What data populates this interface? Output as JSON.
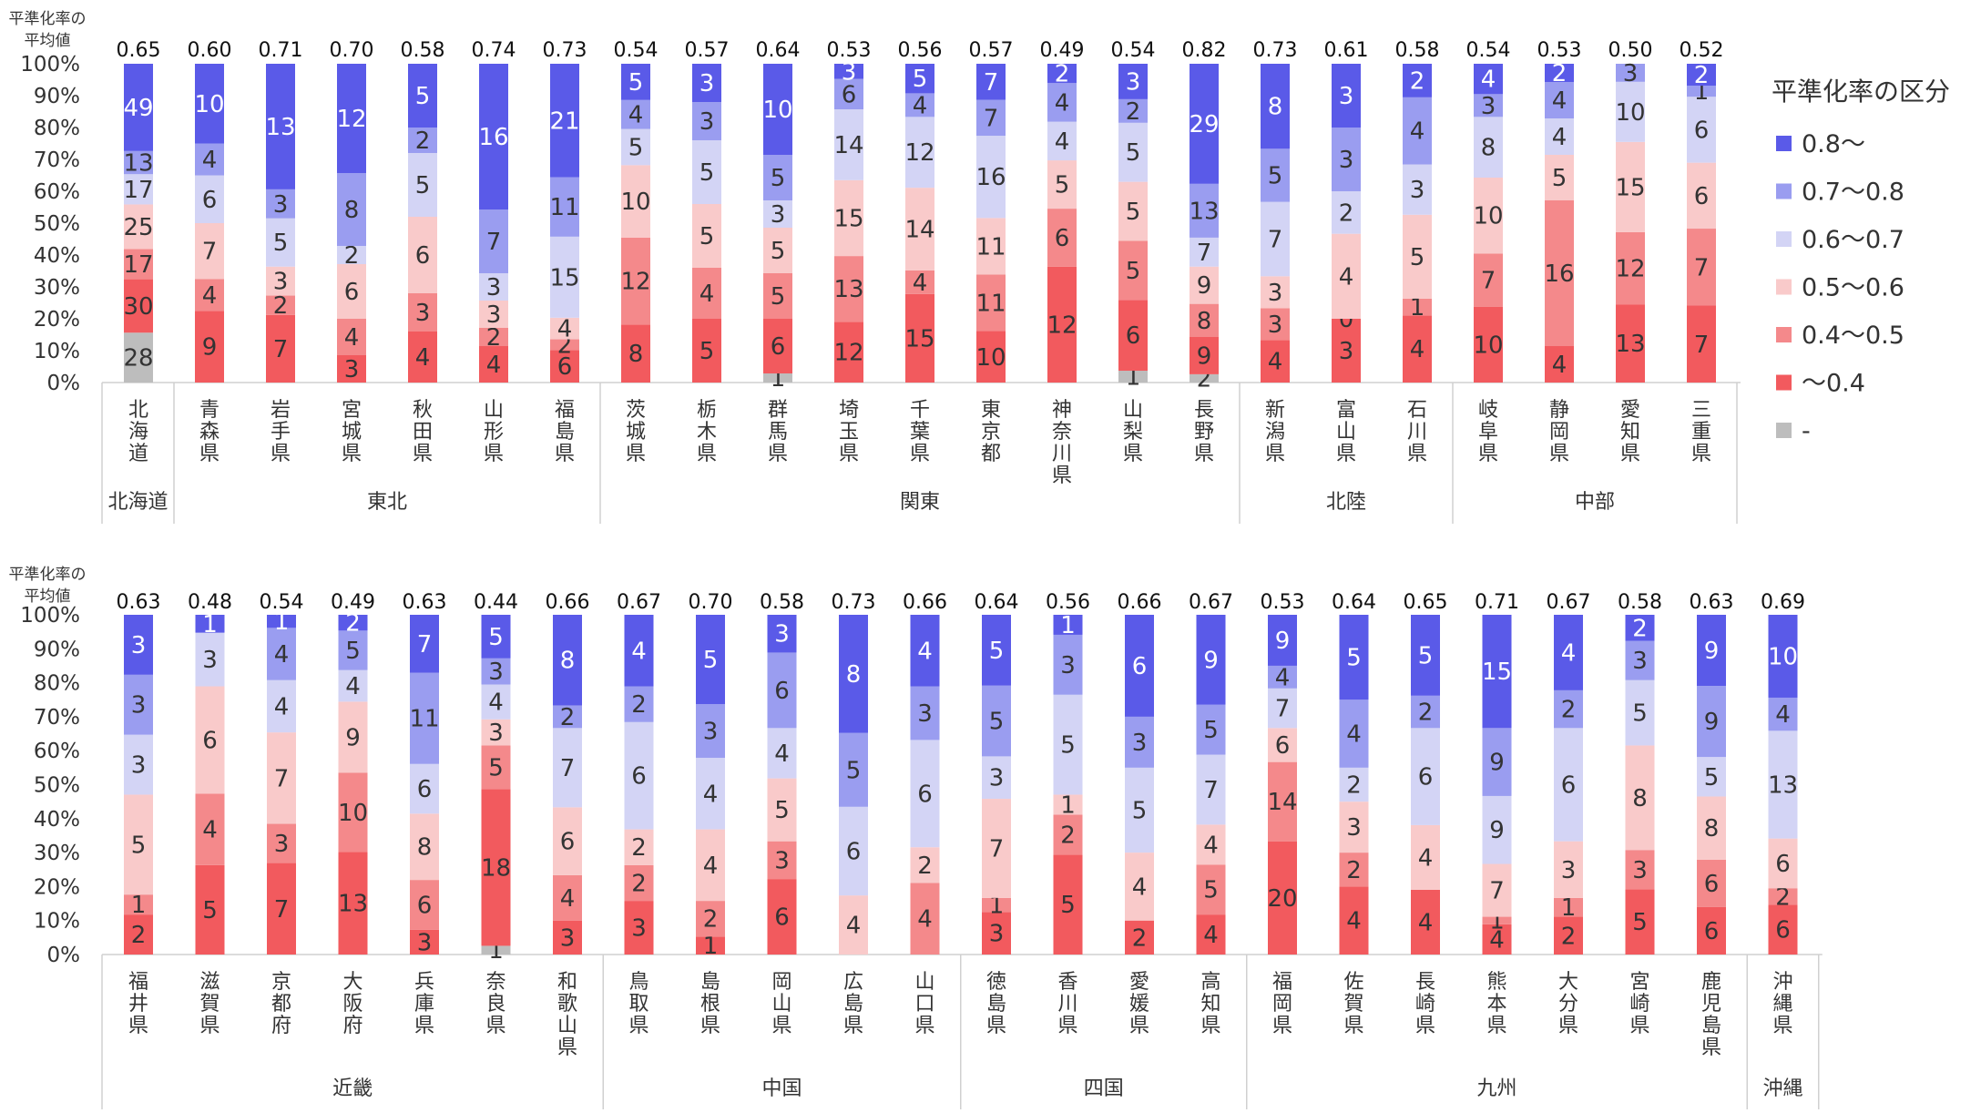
{
  "chart_data": {
    "type": "bar",
    "stacked": "percent",
    "panels": [
      {
        "avg_label": "平準化率の\n平均値",
        "categories": [
          "北海道",
          "青森県",
          "岩手県",
          "宮城県",
          "秋田県",
          "山形県",
          "福島県",
          "茨城県",
          "栃木県",
          "群馬県",
          "埼玉県",
          "千葉県",
          "東京都",
          "神奈川県",
          "山梨県",
          "長野県",
          "新潟県",
          "富山県",
          "石川県",
          "岐阜県",
          "静岡県",
          "愛知県",
          "三重県"
        ],
        "averages": [
          "0.65",
          "0.60",
          "0.71",
          "0.70",
          "0.58",
          "0.74",
          "0.73",
          "0.54",
          "0.57",
          "0.64",
          "0.53",
          "0.56",
          "0.57",
          "0.49",
          "0.54",
          "0.82",
          "0.73",
          "0.61",
          "0.58",
          "0.54",
          "0.53",
          "0.50",
          "0.52"
        ],
        "segments": [
          {
            "gray": 28,
            "c1": 30,
            "c2": 17,
            "c3": 25,
            "c4": 17,
            "c5": 13,
            "c6": 49
          },
          {
            "gray": 0,
            "c1": 9,
            "c2": 4,
            "c3": 7,
            "c4": 6,
            "c5": 4,
            "c6": 10
          },
          {
            "gray": 0,
            "c1": 7,
            "c2": 2,
            "c3": 3,
            "c4": 5,
            "c5": 3,
            "c6": 13
          },
          {
            "gray": 0,
            "c1": 3,
            "c2": 4,
            "c3": 6,
            "c4": 2,
            "c5": 8,
            "c6": 12
          },
          {
            "gray": 0,
            "c1": 4,
            "c2": 3,
            "c3": 6,
            "c4": 5,
            "c5": 2,
            "c6": 5
          },
          {
            "gray": 0,
            "c1": 4,
            "c2": 2,
            "c3": 3,
            "c4": 3,
            "c5": 7,
            "c6": 16
          },
          {
            "gray": 0,
            "c1": 6,
            "c2": 2,
            "c3": 4,
            "c4": 15,
            "c5": 11,
            "c6": 21
          },
          {
            "gray": 0,
            "c1": 8,
            "c2": 12,
            "c3": 10,
            "c4": 5,
            "c5": 4,
            "c6": 5
          },
          {
            "gray": 0,
            "c1": 5,
            "c2": 4,
            "c3": 5,
            "c4": 5,
            "c5": 3,
            "c6": 3
          },
          {
            "gray": 1,
            "c1": 6,
            "c2": 5,
            "c3": 5,
            "c4": 3,
            "c5": 5,
            "c6": 10
          },
          {
            "gray": 0,
            "c1": 12,
            "c2": 13,
            "c3": 15,
            "c4": 14,
            "c5": 6,
            "c6": 3
          },
          {
            "gray": 0,
            "c1": 15,
            "c2": 4,
            "c3": 14,
            "c4": 12,
            "c5": 4,
            "c6": 5
          },
          {
            "gray": 0,
            "c1": 10,
            "c2": 11,
            "c3": 11,
            "c4": 16,
            "c5": 7,
            "c6": 7
          },
          {
            "gray": 0,
            "c1": 12,
            "c2": 6,
            "c3": 5,
            "c4": 4,
            "c5": 4,
            "c6": 2
          },
          {
            "gray": 1,
            "c1": 6,
            "c2": 5,
            "c3": 5,
            "c4": 5,
            "c5": 2,
            "c6": 3
          },
          {
            "gray": 2,
            "c1": 9,
            "c2": 8,
            "c3": 9,
            "c4": 7,
            "c5": 13,
            "c6": 29
          },
          {
            "gray": 0,
            "c1": 4,
            "c2": 3,
            "c3": 3,
            "c4": 7,
            "c5": 5,
            "c6": 8
          },
          {
            "gray": 0,
            "c1": 3,
            "c2": 0,
            "c3": 4,
            "c4": 2,
            "c5": 3,
            "c6": 3
          },
          {
            "gray": 0,
            "c1": 4,
            "c2": 1,
            "c3": 5,
            "c4": 3,
            "c5": 4,
            "c6": 2
          },
          {
            "gray": 0,
            "c1": 10,
            "c2": 7,
            "c3": 10,
            "c4": 8,
            "c5": 3,
            "c6": 4
          },
          {
            "gray": 0,
            "c1": 4,
            "c2": 16,
            "c3": 5,
            "c4": 4,
            "c5": 4,
            "c6": 2
          },
          {
            "gray": 0,
            "c1": 13,
            "c2": 12,
            "c3": 15,
            "c4": 10,
            "c5": 3,
            "c6": 0
          },
          {
            "gray": 0,
            "c1": 7,
            "c2": 7,
            "c3": 6,
            "c4": 6,
            "c5": 1,
            "c6": 2
          }
        ],
        "hidden_labels": [
          {
            "cat": 21,
            "key": "c6"
          }
        ],
        "regions": [
          {
            "name": "北海道",
            "start": 0,
            "end": 0
          },
          {
            "name": "東北",
            "start": 1,
            "end": 6
          },
          {
            "name": "関東",
            "start": 7,
            "end": 15
          },
          {
            "name": "北陸",
            "start": 16,
            "end": 18
          },
          {
            "name": "中部",
            "start": 19,
            "end": 22
          }
        ]
      },
      {
        "avg_label": "平準化率の\n平均値",
        "categories": [
          "福井県",
          "滋賀県",
          "京都府",
          "大阪府",
          "兵庫県",
          "奈良県",
          "和歌山県",
          "鳥取県",
          "島根県",
          "岡山県",
          "広島県",
          "山口県",
          "徳島県",
          "香川県",
          "愛媛県",
          "高知県",
          "福岡県",
          "佐賀県",
          "長崎県",
          "熊本県",
          "大分県",
          "宮崎県",
          "鹿児島県",
          "沖縄県"
        ],
        "averages": [
          "0.63",
          "0.48",
          "0.54",
          "0.49",
          "0.63",
          "0.44",
          "0.66",
          "0.67",
          "0.70",
          "0.58",
          "0.73",
          "0.66",
          "0.64",
          "0.56",
          "0.66",
          "0.67",
          "0.53",
          "0.64",
          "0.65",
          "0.71",
          "0.67",
          "0.58",
          "0.63",
          "0.69"
        ],
        "segments": [
          {
            "gray": 0,
            "c1": 2,
            "c2": 1,
            "c3": 5,
            "c4": 3,
            "c5": 3,
            "c6": 3
          },
          {
            "gray": 0,
            "c1": 5,
            "c2": 4,
            "c3": 6,
            "c4": 3,
            "c5": 0,
            "c6": 1
          },
          {
            "gray": 0,
            "c1": 7,
            "c2": 3,
            "c3": 7,
            "c4": 4,
            "c5": 4,
            "c6": 1
          },
          {
            "gray": 0,
            "c1": 13,
            "c2": 10,
            "c3": 9,
            "c4": 4,
            "c5": 5,
            "c6": 2
          },
          {
            "gray": 0,
            "c1": 3,
            "c2": 6,
            "c3": 8,
            "c4": 6,
            "c5": 11,
            "c6": 7
          },
          {
            "gray": 1,
            "c1": 18,
            "c2": 5,
            "c3": 3,
            "c4": 4,
            "c5": 3,
            "c6": 5
          },
          {
            "gray": 0,
            "c1": 3,
            "c2": 4,
            "c3": 6,
            "c4": 7,
            "c5": 2,
            "c6": 8
          },
          {
            "gray": 0,
            "c1": 3,
            "c2": 2,
            "c3": 2,
            "c4": 6,
            "c5": 2,
            "c6": 4
          },
          {
            "gray": 0,
            "c1": 1,
            "c2": 2,
            "c3": 4,
            "c4": 4,
            "c5": 3,
            "c6": 5
          },
          {
            "gray": 0,
            "c1": 6,
            "c2": 3,
            "c3": 5,
            "c4": 4,
            "c5": 6,
            "c6": 3
          },
          {
            "gray": 0,
            "c1": 0,
            "c2": 0,
            "c3": 4,
            "c4": 6,
            "c5": 5,
            "c6": 8
          },
          {
            "gray": 0,
            "c1": 0,
            "c2": 4,
            "c3": 2,
            "c4": 6,
            "c5": 3,
            "c6": 4
          },
          {
            "gray": 0,
            "c1": 3,
            "c2": 1,
            "c3": 7,
            "c4": 3,
            "c5": 5,
            "c6": 5
          },
          {
            "gray": 0,
            "c1": 5,
            "c2": 2,
            "c3": 1,
            "c4": 5,
            "c5": 3,
            "c6": 1
          },
          {
            "gray": 0,
            "c1": 2,
            "c2": 0,
            "c3": 4,
            "c4": 5,
            "c5": 3,
            "c6": 6
          },
          {
            "gray": 0,
            "c1": 4,
            "c2": 5,
            "c3": 4,
            "c4": 7,
            "c5": 5,
            "c6": 9
          },
          {
            "gray": 0,
            "c1": 20,
            "c2": 14,
            "c3": 6,
            "c4": 7,
            "c5": 4,
            "c6": 9
          },
          {
            "gray": 0,
            "c1": 4,
            "c2": 2,
            "c3": 3,
            "c4": 2,
            "c5": 4,
            "c6": 5
          },
          {
            "gray": 0,
            "c1": 4,
            "c2": 0,
            "c3": 4,
            "c4": 6,
            "c5": 2,
            "c6": 5
          },
          {
            "gray": 0,
            "c1": 4,
            "c2": 1,
            "c3": 7,
            "c4": 9,
            "c5": 9,
            "c6": 15
          },
          {
            "gray": 0,
            "c1": 2,
            "c2": 1,
            "c3": 3,
            "c4": 6,
            "c5": 2,
            "c6": 4
          },
          {
            "gray": 0,
            "c1": 5,
            "c2": 3,
            "c3": 8,
            "c4": 5,
            "c5": 3,
            "c6": 2
          },
          {
            "gray": 0,
            "c1": 6,
            "c2": 6,
            "c3": 8,
            "c4": 5,
            "c5": 9,
            "c6": 9
          },
          {
            "gray": 0,
            "c1": 6,
            "c2": 2,
            "c3": 6,
            "c4": 13,
            "c5": 4,
            "c6": 10
          }
        ],
        "hidden_labels": [],
        "regions": [
          {
            "name": "近畿",
            "start": 0,
            "end": 6
          },
          {
            "name": "中国",
            "start": 7,
            "end": 11
          },
          {
            "name": "四国",
            "start": 12,
            "end": 15
          },
          {
            "name": "九州",
            "start": 16,
            "end": 22
          },
          {
            "name": "沖縄",
            "start": 23,
            "end": 23
          }
        ]
      }
    ],
    "y_ticks": [
      "0%",
      "10%",
      "20%",
      "30%",
      "40%",
      "50%",
      "60%",
      "70%",
      "80%",
      "90%",
      "100%"
    ],
    "ylim": [
      0,
      100
    ],
    "grid": false,
    "legend": {
      "placement": "right",
      "title": "平準化率の区分",
      "items": [
        {
          "key": "c6",
          "label": "0.8～"
        },
        {
          "key": "c5",
          "label": "0.7～0.8"
        },
        {
          "key": "c4",
          "label": "0.6～0.7"
        },
        {
          "key": "c3",
          "label": "0.5～0.6"
        },
        {
          "key": "c2",
          "label": "0.4～0.5"
        },
        {
          "key": "c1",
          "label": "～0.4"
        },
        {
          "key": "gray",
          "label": "-"
        }
      ]
    },
    "colors": {
      "gray": "#bdbdbd",
      "c1": "#f25a5e",
      "c2": "#f4898b",
      "c3": "#f9caca",
      "c4": "#d3d4f5",
      "c5": "#9a9df0",
      "c6": "#5a5ae8"
    }
  }
}
